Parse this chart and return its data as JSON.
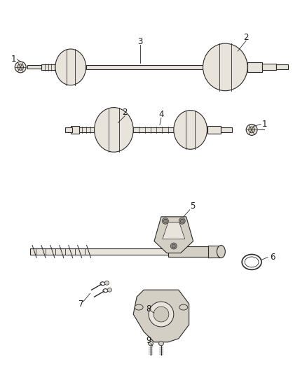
{
  "bg_color": "#ffffff",
  "line_color": "#2a2a2a",
  "fill_light": "#e8e4dc",
  "fill_mid": "#d4cfc4",
  "fill_dark": "#b8b2a8",
  "label_color": "#1a1a1a",
  "fig_width": 4.38,
  "fig_height": 5.33,
  "dpi": 100,
  "label_fontsize": 8.5
}
